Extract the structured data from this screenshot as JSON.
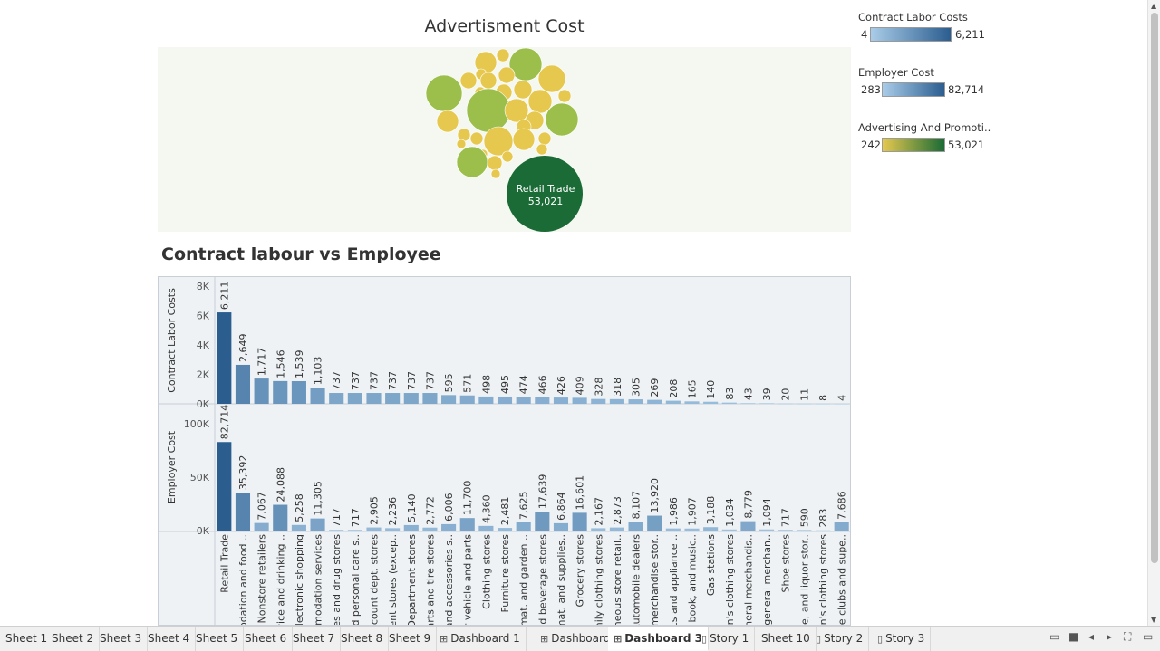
{
  "bubble_chart": {
    "title": "Advertisment Cost",
    "highlight_label": "Retail Trade",
    "highlight_value": "53,021"
  },
  "legends": [
    {
      "title": "Contract Labor Costs",
      "min": "4",
      "max": "6,211",
      "gradient": [
        "#a9cce8",
        "#2b5d8f"
      ]
    },
    {
      "title": "Employer Cost",
      "min": "283",
      "max": "82,714",
      "gradient": [
        "#a9cce8",
        "#2b5d8f"
      ]
    },
    {
      "title": "Advertising And Promoti..",
      "min": "242",
      "max": "53,021",
      "gradient": [
        "#e6c84f",
        "#1a6b35"
      ]
    }
  ],
  "bar_chart_title": "Contract labour vs Employee",
  "chart_data": [
    {
      "type": "bubble",
      "title": "Advertisment Cost",
      "note": "Packed bubbles sized/colored by Advertising And Promotion cost; largest: Retail Trade 53,021"
    },
    {
      "type": "bar",
      "title": "Contract labour vs Employee",
      "categories": [
        "Retail Trade",
        "odation and food ..",
        "Nonstore retailers",
        "vice and drinking ..",
        "Electronic shopping",
        "mmodation services",
        "ies and drug stores",
        "nd personal care s..",
        "count dept. stores",
        "ent stores (excep..",
        "Department stores",
        "arts and tire stores",
        "and accessories s..",
        "r vehicle and parts",
        "Clothing stores",
        "Furniture stores",
        "mat. and garden ..",
        "nd beverage stores",
        "mat. and supplies..",
        "Grocery stores",
        "nily clothing stores",
        "neous store retail..",
        "Automobile dealers",
        "merchandise stor..",
        "ics and appliance ..",
        ", book, and music..",
        "Gas stations",
        "n's clothing stores",
        "neral merchandis..",
        "' general merchan..",
        "Shoe stores",
        "ne, and liquor stor..",
        "n's clothing stores",
        "use clubs and supe.."
      ],
      "series": [
        {
          "name": "Contract Labor Costs",
          "ylim": [
            0,
            8000
          ],
          "ticks": [
            "0K",
            "2K",
            "4K",
            "6K",
            "8K"
          ],
          "tick_values": [
            0,
            2000,
            4000,
            6000,
            8000
          ],
          "values": [
            6211,
            2649,
            1717,
            1546,
            1539,
            1103,
            737,
            737,
            737,
            737,
            737,
            737,
            595,
            571,
            498,
            495,
            474,
            466,
            426,
            409,
            328,
            318,
            305,
            269,
            208,
            165,
            140,
            83,
            43,
            39,
            20,
            11,
            8,
            4
          ],
          "labels": [
            "6,211",
            "2,649",
            "1,717",
            "1,546",
            "1,539",
            "1,103",
            "737",
            "737",
            "737",
            "737",
            "737",
            "737",
            "595",
            "571",
            "498",
            "495",
            "474",
            "466",
            "426",
            "409",
            "328",
            "318",
            "305",
            "269",
            "208",
            "165",
            "140",
            "83",
            "43",
            "39",
            "20",
            "11",
            "8",
            "4"
          ]
        },
        {
          "name": "Employer Cost",
          "ylim": [
            0,
            110000
          ],
          "ticks": [
            "0K",
            "50K",
            "100K"
          ],
          "tick_values": [
            0,
            50000,
            100000
          ],
          "values": [
            82714,
            35392,
            7067,
            24088,
            5258,
            11305,
            717,
            717,
            2905,
            2236,
            5140,
            2772,
            6006,
            11700,
            4360,
            2481,
            7625,
            17639,
            6864,
            16601,
            2167,
            2873,
            8107,
            13920,
            1986,
            1907,
            3188,
            1034,
            8779,
            1094,
            717,
            590,
            283,
            7686
          ],
          "labels": [
            "82,714",
            "35,392",
            "7,067",
            "24,088",
            "5,258",
            "11,305",
            "717",
            "717",
            "2,905",
            "2,236",
            "5,140",
            "2,772",
            "6,006",
            "11,700",
            "4,360",
            "2,481",
            "7,625",
            "17,639",
            "6,864",
            "16,601",
            "2,167",
            "2,873",
            "8,107",
            "13,920",
            "1,986",
            "1,907",
            "3,188",
            "1,034",
            "8,779",
            "1,094",
            "717",
            "590",
            "283",
            "7,686"
          ]
        }
      ],
      "ylabel_top": "Contract Labor Costs",
      "ylabel_bottom": "Employer Cost",
      "grid": false
    }
  ],
  "tabs": [
    {
      "label": "Sheet 1",
      "icon": ""
    },
    {
      "label": "Sheet 2",
      "icon": ""
    },
    {
      "label": "Sheet 3",
      "icon": ""
    },
    {
      "label": "Sheet 4",
      "icon": ""
    },
    {
      "label": "Sheet 5",
      "icon": ""
    },
    {
      "label": "Sheet 6",
      "icon": ""
    },
    {
      "label": "Sheet 7",
      "icon": ""
    },
    {
      "label": "Sheet 8",
      "icon": ""
    },
    {
      "label": "Sheet 9",
      "icon": ""
    },
    {
      "label": "Dashboard 1",
      "icon": "dashboard-icon"
    },
    {
      "label": "Dashboard 2",
      "icon": "dashboard-icon"
    },
    {
      "label": "Dashboard 3",
      "icon": "dashboard-icon",
      "active": true
    },
    {
      "label": "Story 1",
      "icon": "story-icon"
    },
    {
      "label": "Sheet 10",
      "icon": ""
    },
    {
      "label": "Story 2",
      "icon": "story-icon"
    },
    {
      "label": "Story 3",
      "icon": "story-icon"
    }
  ],
  "colors": {
    "bar_dark": "#2b5d8f",
    "bar_light": "#a9cce8",
    "bubble_yellow": "#e6c84f",
    "bubble_green": "#9bbf4a",
    "bubble_dark": "#1a6b35"
  }
}
